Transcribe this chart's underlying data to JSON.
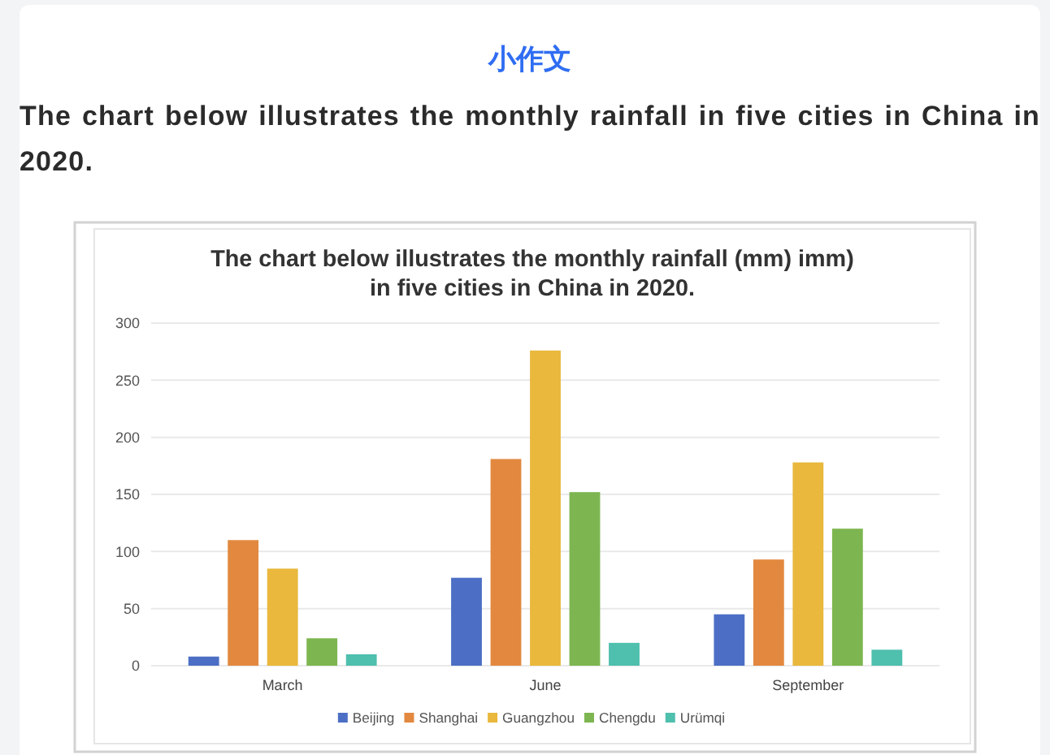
{
  "chart_data": {
    "type": "bar",
    "title": "The chart below illustrates the monthly rainfall (mm) imm) in five cities in China in 2020.",
    "annotations": [
      "小作文",
      "The chart below illustrates the monthly rainfall in five cities in China in 2020."
    ],
    "categories": [
      "March",
      "June",
      "September"
    ],
    "series": [
      {
        "name": "Beijing",
        "color": "#4c6fc5",
        "values": [
          8,
          77,
          45
        ]
      },
      {
        "name": "Shanghai",
        "color": "#e2893f",
        "values": [
          110,
          181,
          93
        ]
      },
      {
        "name": "Guangzhou",
        "color": "#e9b83c",
        "values": [
          85,
          276,
          178
        ]
      },
      {
        "name": "Chengdu",
        "color": "#7db650",
        "values": [
          24,
          152,
          120
        ]
      },
      {
        "name": "Urümqi",
        "color": "#4fbfae",
        "values": [
          10,
          20,
          14
        ]
      }
    ],
    "ylim": [
      0,
      300
    ],
    "yticks": [
      0,
      50,
      100,
      150,
      200,
      250,
      300
    ],
    "grid": "y",
    "legend": "bottom"
  }
}
